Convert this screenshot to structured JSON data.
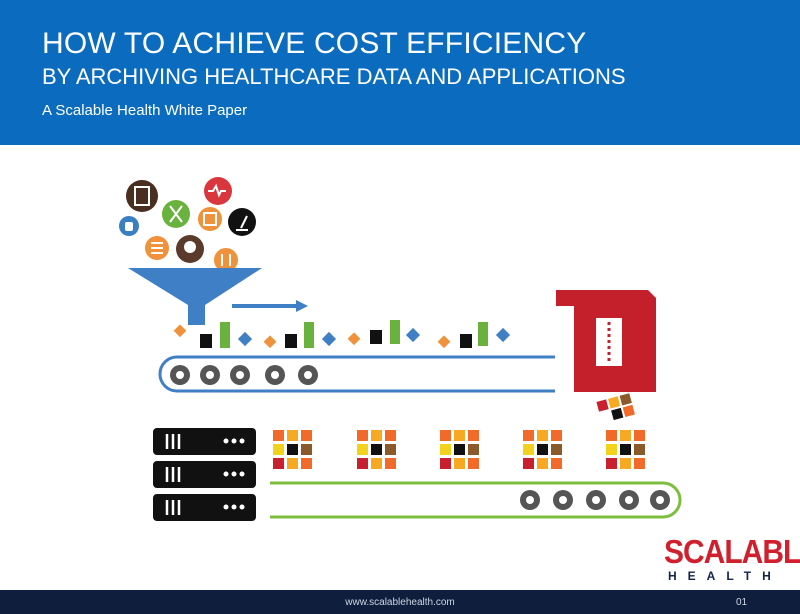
{
  "header": {
    "title_line1": "HOW TO ACHIEVE COST EFFICIENCY",
    "title_line2": "BY  ARCHIVING HEALTHCARE DATA AND APPLICATIONS",
    "subtitle": "A Scalable Health White Paper"
  },
  "logo": {
    "name": "SCALABLE",
    "tagline": "HEALTH"
  },
  "footer": {
    "url": "www.scalablehealth.com",
    "page": "01"
  }
}
